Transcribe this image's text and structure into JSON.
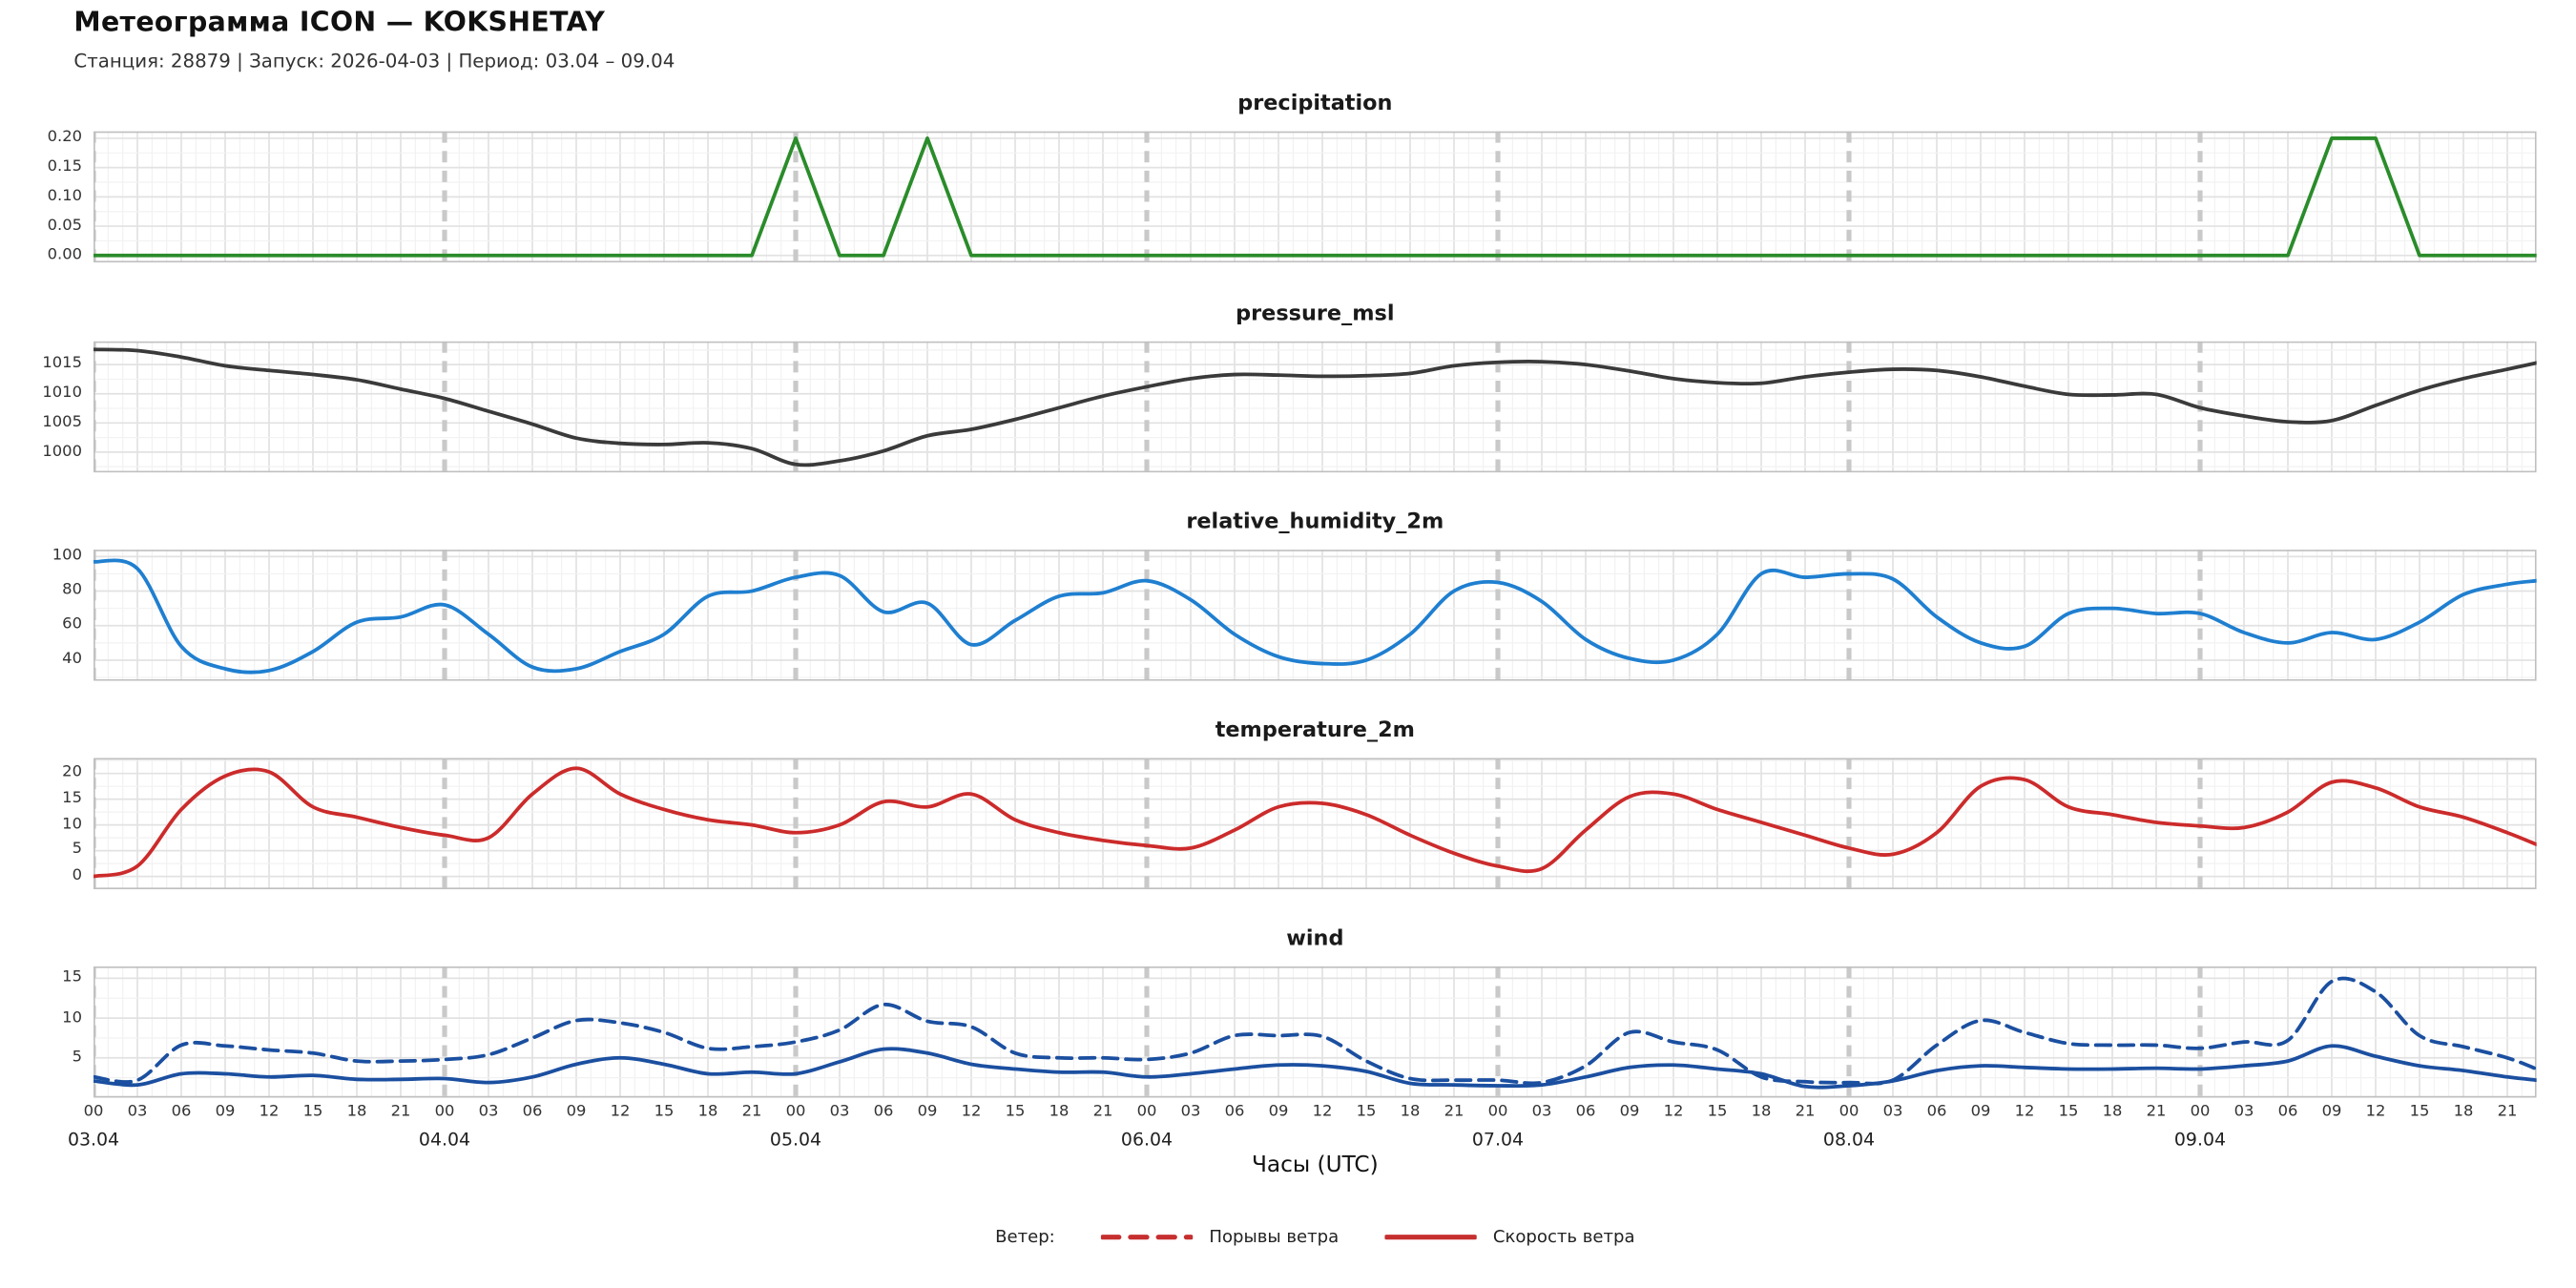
{
  "chart_data": {
    "type": "line",
    "title": "Метеограмма ICON — KOKSHETAY",
    "subtitle": "Станция: 28879 | Запуск: 2026-04-03 | Период: 03.04 – 09.04",
    "background": "#ffffff",
    "grid": true,
    "legend_position": "bottom",
    "x_hours": [
      0,
      3,
      6,
      9,
      12,
      15,
      18,
      21,
      24,
      27,
      30,
      33,
      36,
      39,
      42,
      45,
      48,
      51,
      54,
      57,
      60,
      63,
      66,
      69,
      72,
      75,
      78,
      81,
      84,
      87,
      90,
      93,
      96,
      99,
      102,
      105,
      108,
      111,
      114,
      117,
      120,
      123,
      126,
      129,
      132,
      135,
      138,
      141,
      144,
      147,
      150,
      153,
      156,
      159,
      162,
      165,
      167
    ],
    "x_axis": {
      "x_max": 167,
      "tick_every_h": 3,
      "hour_labels": [
        "00",
        "03",
        "06",
        "09",
        "12",
        "15",
        "18",
        "21"
      ],
      "day_labels": [
        "03.04",
        "04.04",
        "05.04",
        "06.04",
        "07.04",
        "08.04",
        "09.04"
      ],
      "xlabel": "Часы (UTC)"
    },
    "panels": [
      {
        "key": "precipitation",
        "title": "precipitation",
        "color": "#2a8c2a",
        "interp": "linear",
        "ylim": [
          -0.012,
          0.212
        ],
        "yticks": [
          0,
          0.05,
          0.1,
          0.15,
          0.2
        ],
        "ytick_labels": [
          "0.00",
          "0.05",
          "0.10",
          "0.15",
          "0.20"
        ],
        "yminor_step": 0.025,
        "series": [
          {
            "name": "precipitation",
            "style": "solid",
            "values": [
              0,
              0,
              0,
              0,
              0,
              0,
              0,
              0,
              0,
              0,
              0,
              0,
              0,
              0,
              0,
              0,
              0.2,
              0,
              0,
              0.2,
              0,
              0,
              0,
              0,
              0,
              0,
              0,
              0,
              0,
              0,
              0,
              0,
              0,
              0,
              0,
              0,
              0,
              0,
              0,
              0,
              0,
              0,
              0,
              0,
              0,
              0,
              0,
              0,
              0,
              0,
              0,
              0.2,
              0.2,
              0,
              0,
              0,
              0
            ]
          }
        ]
      },
      {
        "key": "pressure_msl",
        "title": "pressure_msl",
        "color": "#3a3a3a",
        "interp": "smooth",
        "ylim": [
          996.5,
          1019
        ],
        "yticks": [
          1000,
          1005,
          1010,
          1015
        ],
        "ytick_labels": [
          "1000",
          "1005",
          "1010",
          "1015"
        ],
        "yminor_step": 2.5,
        "series": [
          {
            "name": "pressure_msl",
            "style": "solid",
            "values": [
              1017.6,
              1017.4,
              1016.3,
              1014.8,
              1014.0,
              1013.3,
              1012.4,
              1010.8,
              1009.2,
              1007.0,
              1004.8,
              1002.4,
              1001.5,
              1001.3,
              1001.6,
              1000.6,
              997.9,
              998.5,
              1000.2,
              1002.8,
              1003.9,
              1005.6,
              1007.6,
              1009.6,
              1011.2,
              1012.6,
              1013.3,
              1013.2,
              1013.0,
              1013.1,
              1013.5,
              1014.8,
              1015.4,
              1015.5,
              1015.0,
              1013.9,
              1012.6,
              1011.9,
              1011.8,
              1012.9,
              1013.7,
              1014.2,
              1014.0,
              1012.9,
              1011.3,
              1009.9,
              1009.8,
              1009.9,
              1007.6,
              1006.2,
              1005.2,
              1005.4,
              1008.0,
              1010.6,
              1012.6,
              1014.2,
              1015.3
            ]
          }
        ]
      },
      {
        "key": "relative_humidity_2m",
        "title": "relative_humidity_2m",
        "color": "#1f7fd0",
        "interp": "smooth",
        "ylim": [
          28,
          104
        ],
        "yticks": [
          40,
          60,
          80,
          100
        ],
        "ytick_labels": [
          "40",
          "60",
          "80",
          "100"
        ],
        "yminor_step": 10,
        "series": [
          {
            "name": "relative_humidity_2m",
            "style": "solid",
            "values": [
              97,
              93,
              48,
              35,
              34,
              45,
              62,
              65,
              72,
              55,
              36,
              35,
              45,
              55,
              77,
              80,
              88,
              89,
              68,
              73,
              49,
              63,
              77,
              79,
              86,
              75,
              55,
              42,
              38,
              40,
              55,
              80,
              85,
              74,
              52,
              41,
              40,
              55,
              90,
              88,
              90,
              87,
              65,
              50,
              48,
              67,
              70,
              67,
              67,
              56,
              50,
              56,
              52,
              62,
              78,
              84,
              86
            ]
          }
        ]
      },
      {
        "key": "temperature_2m",
        "title": "temperature_2m",
        "color": "#cc2b2b",
        "interp": "smooth",
        "ylim": [
          -2.5,
          23
        ],
        "yticks": [
          0,
          5,
          10,
          15,
          20
        ],
        "ytick_labels": [
          "0",
          "5",
          "10",
          "15",
          "20"
        ],
        "yminor_step": 2.5,
        "series": [
          {
            "name": "temperature_2m",
            "style": "solid",
            "values": [
              0.0,
              2.0,
              13.0,
              19.5,
              20.3,
              13.5,
              11.5,
              9.5,
              8.0,
              7.5,
              16.0,
              21.0,
              16.0,
              13.0,
              11.0,
              10.0,
              8.5,
              10.0,
              14.5,
              13.5,
              16.0,
              11.0,
              8.5,
              7.0,
              6.0,
              5.5,
              9.0,
              13.5,
              14.2,
              12.0,
              8.0,
              4.5,
              2.0,
              1.5,
              9.0,
              15.5,
              16.0,
              13.0,
              10.5,
              8.0,
              5.5,
              4.3,
              8.5,
              17.5,
              18.8,
              13.5,
              12.0,
              10.5,
              9.8,
              9.5,
              12.5,
              18.3,
              17.2,
              13.5,
              11.5,
              8.5,
              6.2
            ]
          }
        ]
      },
      {
        "key": "wind",
        "title": "wind",
        "color": "#1b4fa0",
        "interp": "smooth",
        "ylim": [
          0,
          16.5
        ],
        "yticks": [
          5,
          10,
          15
        ],
        "ytick_labels": [
          "5",
          "10",
          "15"
        ],
        "yminor_step": 2.5,
        "series": [
          {
            "name": "Скорость ветра",
            "style": "solid",
            "values": [
              2.1,
              1.6,
              3.0,
              3.0,
              2.6,
              2.8,
              2.3,
              2.3,
              2.4,
              1.9,
              2.6,
              4.2,
              5.0,
              4.2,
              3.0,
              3.2,
              3.0,
              4.5,
              6.1,
              5.6,
              4.2,
              3.6,
              3.2,
              3.2,
              2.6,
              3.0,
              3.6,
              4.1,
              4.0,
              3.3,
              1.8,
              1.6,
              1.5,
              1.6,
              2.6,
              3.8,
              4.1,
              3.6,
              3.0,
              1.4,
              1.5,
              2.1,
              3.4,
              4.0,
              3.8,
              3.6,
              3.6,
              3.7,
              3.6,
              4.0,
              4.6,
              6.5,
              5.2,
              4.0,
              3.4,
              2.6,
              2.2
            ]
          },
          {
            "name": "Порывы ветра",
            "style": "dashed",
            "values": [
              2.6,
              2.2,
              6.6,
              6.5,
              6.0,
              5.6,
              4.6,
              4.6,
              4.8,
              5.4,
              7.5,
              9.7,
              9.4,
              8.2,
              6.2,
              6.4,
              7.0,
              8.5,
              11.7,
              9.6,
              8.9,
              5.6,
              5.0,
              5.0,
              4.8,
              5.6,
              7.8,
              7.8,
              7.7,
              4.6,
              2.4,
              2.2,
              2.2,
              1.9,
              4.0,
              8.2,
              7.0,
              6.0,
              2.6,
              2.0,
              1.9,
              2.2,
              6.6,
              9.7,
              8.2,
              6.8,
              6.6,
              6.6,
              6.2,
              7.0,
              7.2,
              14.6,
              13.3,
              7.8,
              6.4,
              5.0,
              3.6
            ]
          }
        ]
      }
    ],
    "legend": {
      "prefix": "Ветер:",
      "items": [
        {
          "label": "Порывы ветра",
          "style": "dashed",
          "color": "#c62f2f"
        },
        {
          "label": "Скорость ветра",
          "style": "solid",
          "color": "#c62f2f"
        }
      ]
    },
    "grid_colors": {
      "minor": "#f2f2f2",
      "major": "#e2e2e2",
      "day_line": "#c9c9c9",
      "border": "#bfbfbf"
    }
  }
}
